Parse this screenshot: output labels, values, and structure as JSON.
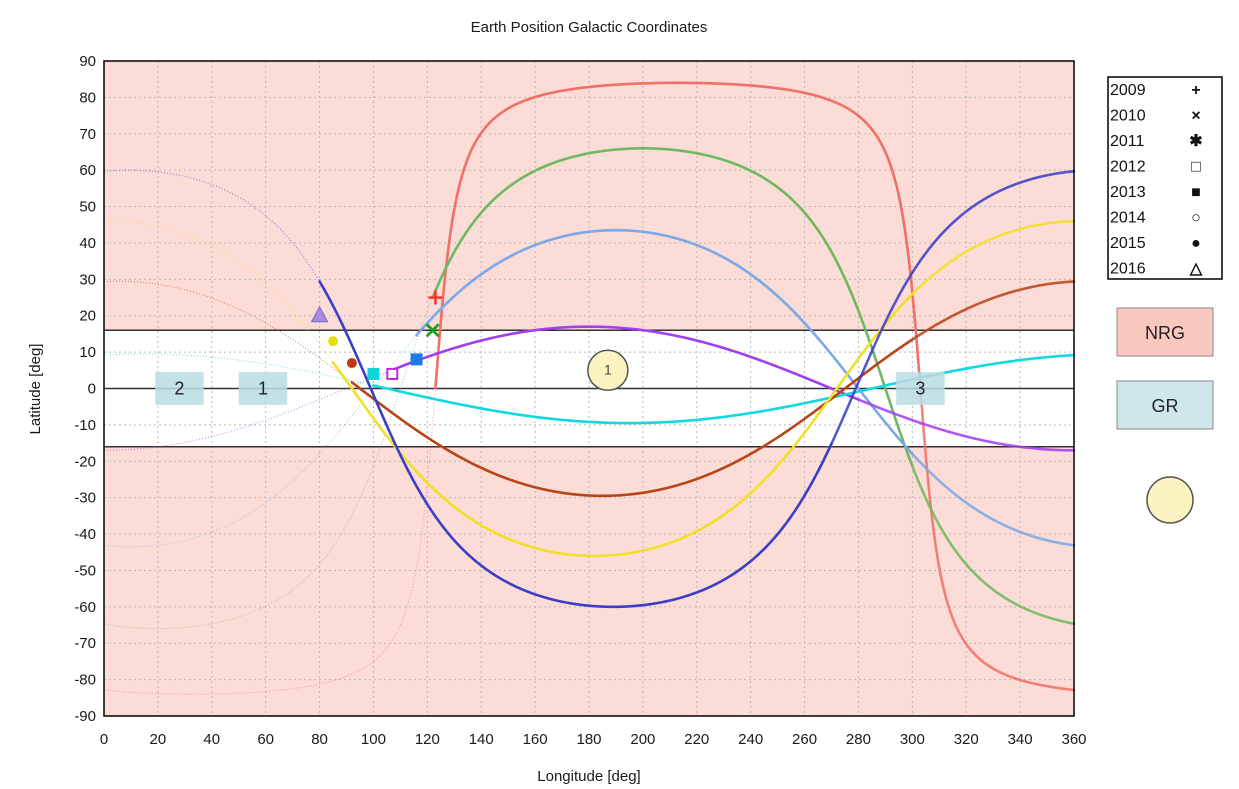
{
  "chart_data": {
    "type": "line",
    "title": "Earth Position Galactic Coordinates",
    "xlabel": "Longitude [deg]",
    "ylabel": "Latitude [deg]",
    "xlim": [
      0,
      360
    ],
    "ylim": [
      -90,
      90
    ],
    "xticks": [
      0,
      20,
      40,
      60,
      80,
      100,
      120,
      140,
      160,
      180,
      200,
      220,
      240,
      260,
      280,
      300,
      320,
      340,
      360
    ],
    "yticks": [
      90,
      80,
      70,
      60,
      50,
      40,
      30,
      20,
      10,
      0,
      -10,
      -20,
      -30,
      -40,
      -50,
      -60,
      -70,
      -80,
      -90
    ],
    "grid": true,
    "background_color": "#fcdcd6",
    "band": {
      "y_min": -16,
      "y_max": 16,
      "color": "#ffffff"
    },
    "band_lines": [
      16,
      0,
      -16
    ],
    "legend_position": "right",
    "series": [
      {
        "name": "2009",
        "marker": "plus",
        "marker_symbol": "+",
        "color": "#f07068",
        "marker_color": "#ff2a2a",
        "amplitude": 84,
        "phase_node": 123,
        "highlight_range": [
          123,
          303
        ],
        "start_x": 123,
        "start_y": 25
      },
      {
        "name": "2010",
        "marker": "x",
        "marker_symbol": "×",
        "color": "#70b860",
        "marker_color": "#1ca01c",
        "amplitude": 66,
        "phase_node": 110,
        "highlight_range": [
          122,
          300
        ],
        "start_x": 122,
        "start_y": 16
      },
      {
        "name": "2011",
        "marker": "asterisk",
        "marker_symbol": "✱",
        "color": "#7aa8e8",
        "marker_color": "#1e7be8",
        "amplitude": 43.5,
        "phase_node": 100,
        "highlight_range": [
          116,
          300
        ],
        "start_x": 116,
        "start_y": 8
      },
      {
        "name": "2012",
        "marker": "square",
        "marker_symbol": "□",
        "color": "#a23ef0",
        "marker_color": "#c02ad8",
        "amplitude": 17,
        "phase_node": 90,
        "highlight_range": [
          107,
          280
        ],
        "start_x": 107,
        "start_y": 4
      },
      {
        "name": "2013",
        "marker": "filled-square",
        "marker_symbol": "■",
        "color": "#12d8e0",
        "marker_color": "#10d2da",
        "amplitude": -9.5,
        "phase_node": 105,
        "highlight_range": [
          100,
          360
        ],
        "start_x": 100,
        "start_y": 4
      },
      {
        "name": "2014",
        "marker": "circle",
        "marker_symbol": "○",
        "color": "#b84418",
        "marker_color": "#c03a10",
        "amplitude": -29.5,
        "phase_node": 95,
        "highlight_range": [
          92,
          300
        ],
        "start_x": 92,
        "start_y": 7
      },
      {
        "name": "2015",
        "marker": "filled-circle",
        "marker_symbol": "●",
        "color": "#f0e028",
        "marker_color": "#e8e000",
        "amplitude": -46,
        "phase_node": 92,
        "highlight_range": [
          85,
          300
        ],
        "start_x": 85,
        "start_y": 13
      },
      {
        "name": "2016",
        "marker": "triangle",
        "marker_symbol": "△",
        "color": "#3a3ec8",
        "marker_color": "#2a2ac8",
        "amplitude": -60,
        "phase_node": 99,
        "highlight_range": [
          80,
          270
        ],
        "start_x": 80,
        "start_y": 20
      }
    ],
    "zones": [
      {
        "label": "2",
        "x": [
          19,
          37
        ],
        "y": [
          -4.5,
          4.5
        ]
      },
      {
        "label": "1",
        "x": [
          50,
          68
        ],
        "y": [
          -4.5,
          4.5
        ]
      },
      {
        "label": "3",
        "x": [
          294,
          312
        ],
        "y": [
          -4.5,
          4.5
        ]
      }
    ],
    "marker_circle": {
      "label": "1",
      "x": 187,
      "y": 5,
      "color": "#fbf3c0"
    }
  },
  "legend_boxes": [
    {
      "label": "NRG",
      "color": "#fbc8c0"
    },
    {
      "label": "GR",
      "color": "#cfe6ea"
    }
  ],
  "legend_circle_color": "#fbf3c0"
}
